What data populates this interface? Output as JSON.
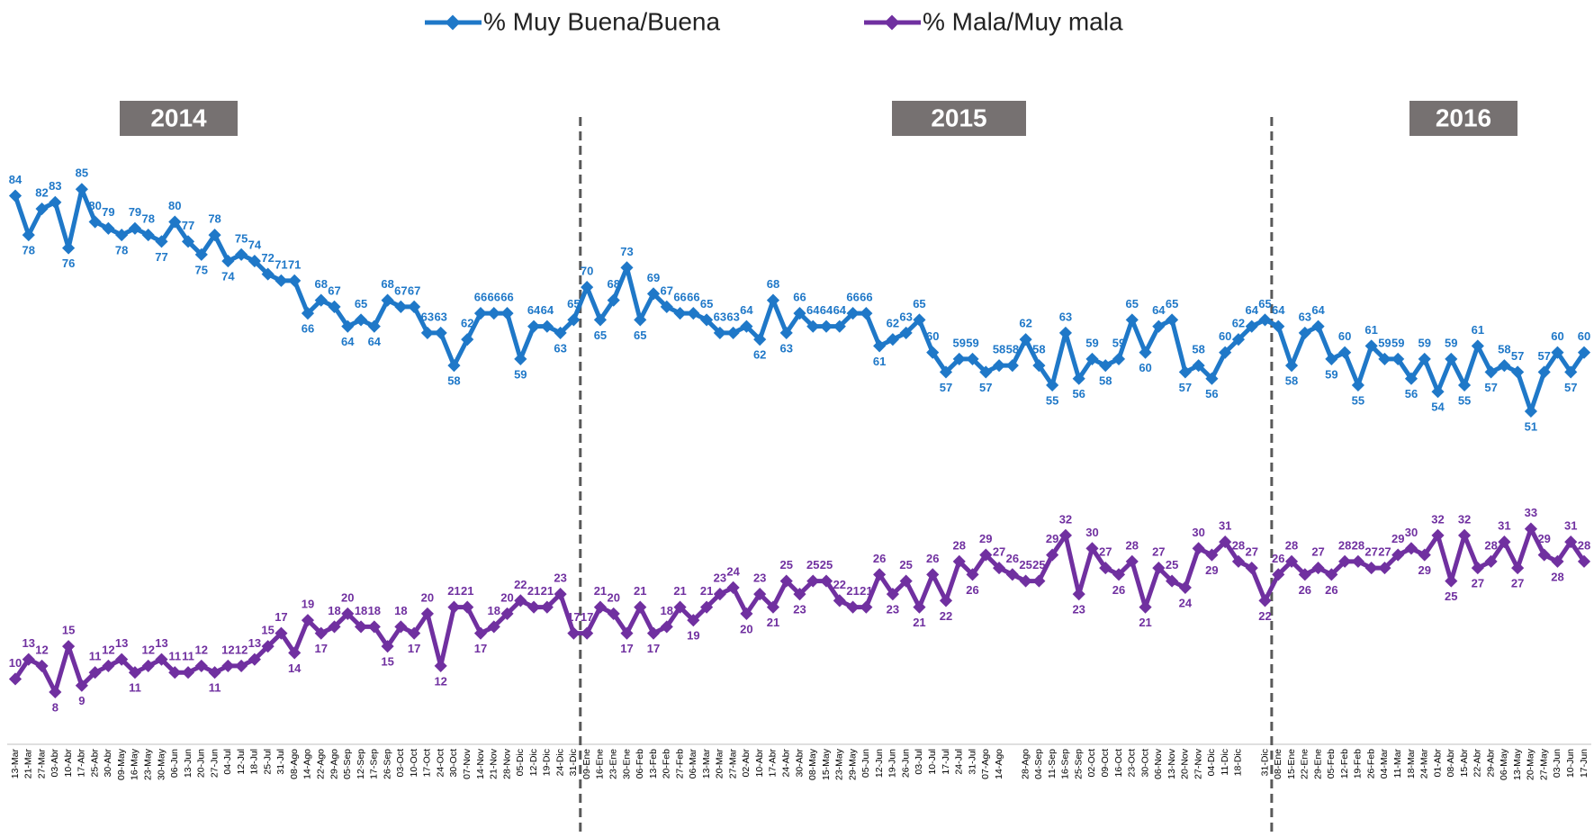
{
  "chart_data": {
    "type": "line",
    "categories": [
      "13-Mar",
      "21-Mar",
      "27-Mar",
      "03-Abr",
      "10-Abr",
      "17-Abr",
      "25-Abr",
      "30-Abr",
      "09-May",
      "16-May",
      "23-May",
      "30-May",
      "06-Jun",
      "13-Jun",
      "20-Jun",
      "27-Jun",
      "04-Jul",
      "12-Jul",
      "18-Jul",
      "25-Jul",
      "31-Jul",
      "08-Ago",
      "14-Ago",
      "22-Ago",
      "29-Ago",
      "05-Sep",
      "12-Sep",
      "17-Sep",
      "26-Sep",
      "03-Oct",
      "10-Oct",
      "17-Oct",
      "24-Oct",
      "30-Oct",
      "07-Nov",
      "14-Nov",
      "21-Nov",
      "28-Nov",
      "05-Dic",
      "12-Dic",
      "19-Dic",
      "24-Dic",
      "31-Dic",
      "09-Ene",
      "16-Ene",
      "23-Ene",
      "30-Ene",
      "06-Feb",
      "13-Feb",
      "20-Feb",
      "27-Feb",
      "06-Mar",
      "13-Mar",
      "20-Mar",
      "27-Mar",
      "02-Abr",
      "10-Abr",
      "17-Abr",
      "24-Abr",
      "30-Abr",
      "08-May",
      "15-May",
      "23-May",
      "29-May",
      "05-Jun",
      "12-Jun",
      "19-Jun",
      "26-Jun",
      "03-Jul",
      "10-Jul",
      "17-Jul",
      "24-Jul",
      "31-Jul",
      "07-Ago",
      "14-Ago",
      null,
      "28-Ago",
      "04-Sep",
      "11-Sep",
      "16-Sep",
      "25-Sep",
      "02-Oct",
      "09-Oct",
      "16-Oct",
      "23-Oct",
      "30-Oct",
      "06-Nov",
      "13-Nov",
      "20-Nov",
      "27-Nov",
      "04-Dic",
      "11-Dic",
      "18-Dic",
      null,
      "31-Dic",
      "08-Ene",
      "15-Ene",
      "22-Ene",
      "29-Ene",
      "05-Feb",
      "12-Feb",
      "19-Feb",
      "26-Feb",
      "04-Mar",
      "11-Mar",
      "18-Mar",
      "24-Mar",
      "01-Abr",
      "08-Abr",
      "15-Abr",
      "22-Abr",
      "29-Abr",
      "06-May",
      "13-May",
      "20-May",
      "27-May",
      "03-Jun",
      "10-Jun",
      "17-Jun"
    ],
    "series": [
      {
        "name": "% Muy Buena/Buena",
        "color": "#1f78c8",
        "values": [
          84,
          78,
          82,
          83,
          76,
          85,
          80,
          79,
          78,
          79,
          78,
          77,
          80,
          77,
          75,
          78,
          74,
          75,
          74,
          72,
          71,
          71,
          66,
          68,
          67,
          64,
          65,
          64,
          68,
          67,
          67,
          63,
          63,
          58,
          62,
          66,
          66,
          66,
          59,
          64,
          64,
          63,
          65,
          70,
          65,
          68,
          73,
          65,
          69,
          67,
          66,
          66,
          65,
          63,
          63,
          64,
          62,
          68,
          63,
          66,
          64,
          64,
          64,
          66,
          66,
          61,
          62,
          63,
          65,
          60,
          57,
          59,
          59,
          57,
          58,
          58,
          62,
          58,
          55,
          63,
          56,
          59,
          58,
          59,
          65,
          60,
          64,
          65,
          57,
          58,
          56,
          60,
          62,
          64,
          65,
          64,
          58,
          63,
          64,
          59,
          60,
          55,
          61,
          59,
          59,
          56,
          59,
          54,
          59,
          55,
          61,
          57,
          58,
          57,
          51,
          57,
          60,
          57,
          60
        ]
      },
      {
        "name": "% Mala/Muy mala",
        "color": "#7030a0",
        "values": [
          10,
          13,
          12,
          8,
          15,
          9,
          11,
          12,
          13,
          11,
          12,
          13,
          11,
          11,
          12,
          11,
          12,
          12,
          13,
          15,
          17,
          14,
          19,
          17,
          18,
          20,
          18,
          18,
          15,
          18,
          17,
          20,
          12,
          21,
          21,
          17,
          18,
          20,
          22,
          21,
          21,
          23,
          17,
          17,
          21,
          20,
          17,
          21,
          17,
          18,
          21,
          19,
          21,
          23,
          24,
          20,
          23,
          21,
          25,
          23,
          25,
          25,
          22,
          21,
          21,
          26,
          23,
          25,
          21,
          26,
          22,
          28,
          26,
          29,
          27,
          26,
          25,
          25,
          29,
          32,
          23,
          30,
          27,
          26,
          28,
          21,
          27,
          25,
          24,
          30,
          29,
          31,
          28,
          27,
          22,
          26,
          28,
          26,
          27,
          26,
          28,
          28,
          27,
          27,
          29,
          30,
          29,
          32,
          25,
          32,
          27,
          28,
          31,
          27,
          33,
          29,
          28,
          31,
          28
        ]
      }
    ],
    "annotations": [
      "2014",
      "2015",
      "2016"
    ],
    "ylim": [
      0,
      90
    ]
  }
}
